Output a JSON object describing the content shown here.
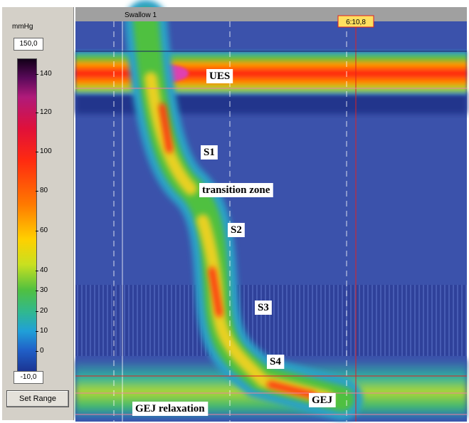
{
  "panel": {
    "unit": "mmHg",
    "max": "150,0",
    "ticks": [
      140,
      120,
      100,
      80,
      60,
      40,
      30,
      20,
      10,
      0
    ],
    "min": "-10,0",
    "button": "Set Range"
  },
  "plot": {
    "title": "Swallow 1",
    "cursor_time": "6:10,8",
    "annotations": [
      "UES",
      "S1",
      "transition zone",
      "S2",
      "S3",
      "S4",
      "GEJ",
      "GEJ relaxation"
    ]
  }
}
